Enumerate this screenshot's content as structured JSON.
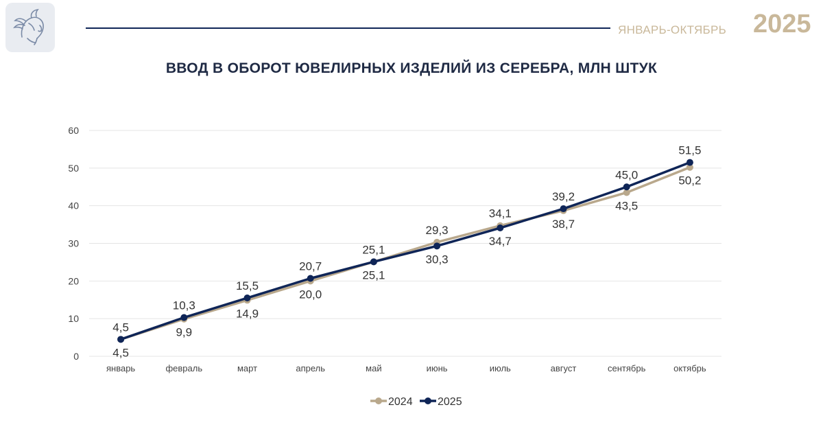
{
  "header": {
    "period": "ЯНВАРЬ-ОКТЯБРЬ",
    "year": "2025",
    "logo_icon": "mercury-head-logo-icon"
  },
  "colors": {
    "series_2024": "#b9a88c",
    "series_2025": "#0f2557",
    "grid": "#e4e4e4",
    "text": "#333333",
    "accent": "#c9b89a"
  },
  "chart_data": {
    "type": "line",
    "title": "ВВОД В ОБОРОТ ЮВЕЛИРНЫХ ИЗДЕЛИЙ ИЗ СЕРЕБРА, МЛН ШТУК",
    "categories": [
      "январь",
      "февраль",
      "март",
      "апрель",
      "май",
      "июнь",
      "июль",
      "август",
      "сентябрь",
      "октябрь"
    ],
    "series": [
      {
        "name": "2024",
        "values": [
          4.5,
          9.9,
          14.9,
          20.0,
          25.1,
          30.3,
          34.7,
          38.7,
          43.5,
          50.2
        ],
        "labels": [
          "4,5",
          "9,9",
          "14,9",
          "20,0",
          "25,1",
          "30,3",
          "34,7",
          "38,7",
          "43,5",
          "50,2"
        ]
      },
      {
        "name": "2025",
        "values": [
          4.5,
          10.3,
          15.5,
          20.7,
          25.1,
          29.3,
          34.1,
          39.2,
          45.0,
          51.5
        ],
        "labels": [
          "4,5",
          "10,3",
          "15,5",
          "20,7",
          "25,1",
          "29,3",
          "34,1",
          "39,2",
          "45,0",
          "51,5"
        ]
      }
    ],
    "ylim": [
      0,
      60
    ],
    "yticks": [
      0,
      10,
      20,
      30,
      40,
      50,
      60
    ],
    "grid": true,
    "legend": "bottom-center",
    "xlabel": "",
    "ylabel": ""
  }
}
